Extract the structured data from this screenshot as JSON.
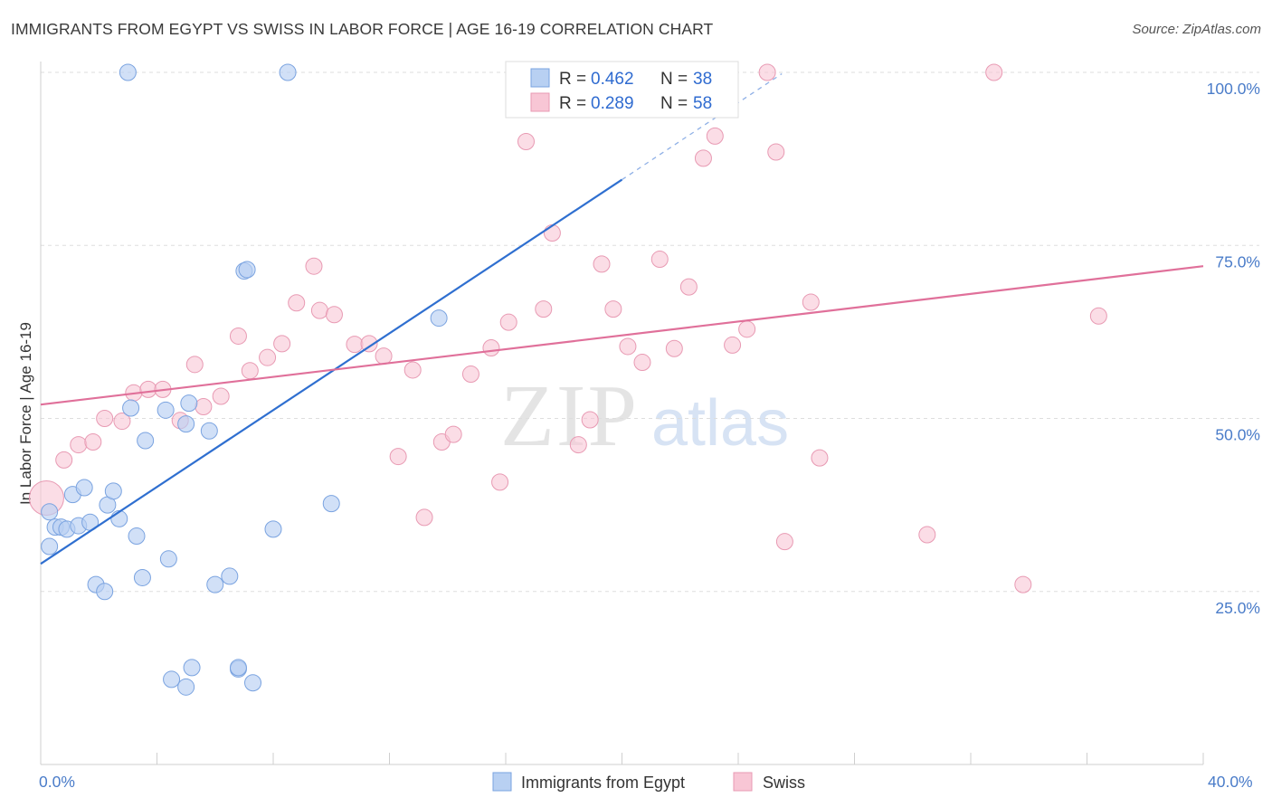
{
  "header": {
    "title": "IMMIGRANTS FROM EGYPT VS SWISS IN LABOR FORCE | AGE 16-19 CORRELATION CHART",
    "source": "Source: ZipAtlas.com"
  },
  "watermark": {
    "zip": "ZIP",
    "atlas": "atlas"
  },
  "colors": {
    "blue_fill": "#b8d0f2",
    "blue_stroke": "#7aa3e0",
    "blue_line": "#2f6fd0",
    "pink_fill": "#f8c6d5",
    "pink_stroke": "#e89ab3",
    "pink_line": "#e0709a",
    "grid": "#dddddd",
    "tick_text": "#4a7cc9"
  },
  "legend": {
    "rows": [
      {
        "r_label": "R = ",
        "r_value": "0.462",
        "n_label": "N = ",
        "n_value": "38"
      },
      {
        "r_label": "R = ",
        "r_value": "0.289",
        "n_label": "N = ",
        "n_value": "58"
      }
    ]
  },
  "chart_data": {
    "type": "scatter",
    "title": "IMMIGRANTS FROM EGYPT VS SWISS IN LABOR FORCE | AGE 16-19 CORRELATION CHART",
    "xlabel": "",
    "ylabel": "In Labor Force | Age 16-19",
    "xlim": [
      0,
      40
    ],
    "ylim": [
      0,
      100
    ],
    "x_tick_labels": [
      "0.0%",
      "40.0%"
    ],
    "y_tick_values": [
      25,
      50,
      75,
      100
    ],
    "y_tick_labels": [
      "25.0%",
      "50.0%",
      "75.0%",
      "100.0%"
    ],
    "grid": true,
    "series": [
      {
        "name": "Immigrants from Egypt",
        "color": "blue",
        "points": [
          [
            0.3,
            36.5
          ],
          [
            0.3,
            31.5
          ],
          [
            0.5,
            34.3
          ],
          [
            0.7,
            34.3
          ],
          [
            0.9,
            34.0
          ],
          [
            1.3,
            34.5
          ],
          [
            1.1,
            39.0
          ],
          [
            1.5,
            40.0
          ],
          [
            1.7,
            35.0
          ],
          [
            2.3,
            37.5
          ],
          [
            2.5,
            39.5
          ],
          [
            2.7,
            35.5
          ],
          [
            3.3,
            33.0
          ],
          [
            3.5,
            27.0
          ],
          [
            1.9,
            26.0
          ],
          [
            2.2,
            25.0
          ],
          [
            3.1,
            51.5
          ],
          [
            3.6,
            46.8
          ],
          [
            4.3,
            51.2
          ],
          [
            4.4,
            29.7
          ],
          [
            5.0,
            49.2
          ],
          [
            5.1,
            52.2
          ],
          [
            5.8,
            48.2
          ],
          [
            6.0,
            26.0
          ],
          [
            6.5,
            27.2
          ],
          [
            6.8,
            13.8
          ],
          [
            6.8,
            14.0
          ],
          [
            7.0,
            71.3
          ],
          [
            7.1,
            71.5
          ],
          [
            7.3,
            11.8
          ],
          [
            5.2,
            14.0
          ],
          [
            4.5,
            12.3
          ],
          [
            5.0,
            11.2
          ],
          [
            8.0,
            34.0
          ],
          [
            8.5,
            100.0
          ],
          [
            3.0,
            100.0
          ],
          [
            10.0,
            37.7
          ],
          [
            13.7,
            64.5
          ]
        ],
        "trend": {
          "x0": 0,
          "y0": 29.0,
          "x1": 20.0,
          "y1": 84.5,
          "dash_x1": 25.5,
          "dash_y1": 99.8
        }
      },
      {
        "name": "Swiss",
        "color": "pink",
        "points": [
          [
            0.2,
            38.5
          ],
          [
            0.8,
            44.0
          ],
          [
            1.3,
            46.2
          ],
          [
            1.8,
            46.6
          ],
          [
            2.2,
            50.0
          ],
          [
            2.8,
            49.6
          ],
          [
            3.2,
            53.7
          ],
          [
            3.7,
            54.2
          ],
          [
            4.2,
            54.2
          ],
          [
            4.8,
            49.7
          ],
          [
            5.3,
            57.8
          ],
          [
            5.6,
            51.7
          ],
          [
            6.2,
            53.2
          ],
          [
            6.8,
            61.9
          ],
          [
            7.2,
            56.9
          ],
          [
            7.8,
            58.8
          ],
          [
            8.3,
            60.8
          ],
          [
            8.8,
            66.7
          ],
          [
            9.4,
            72.0
          ],
          [
            9.6,
            65.6
          ],
          [
            10.1,
            65.0
          ],
          [
            10.8,
            60.7
          ],
          [
            11.3,
            60.8
          ],
          [
            11.8,
            59.0
          ],
          [
            12.3,
            44.5
          ],
          [
            12.8,
            57.0
          ],
          [
            13.2,
            35.7
          ],
          [
            13.8,
            46.6
          ],
          [
            14.2,
            47.7
          ],
          [
            14.8,
            56.4
          ],
          [
            15.5,
            60.2
          ],
          [
            15.8,
            40.8
          ],
          [
            16.1,
            63.9
          ],
          [
            16.7,
            90.0
          ],
          [
            17.3,
            65.8
          ],
          [
            17.6,
            76.8
          ],
          [
            18.5,
            46.2
          ],
          [
            18.9,
            49.8
          ],
          [
            19.3,
            72.3
          ],
          [
            19.7,
            65.8
          ],
          [
            20.2,
            60.4
          ],
          [
            20.7,
            58.1
          ],
          [
            21.3,
            73.0
          ],
          [
            21.8,
            60.1
          ],
          [
            22.3,
            69.0
          ],
          [
            22.8,
            87.6
          ],
          [
            23.2,
            90.8
          ],
          [
            23.8,
            60.6
          ],
          [
            24.3,
            62.9
          ],
          [
            25.0,
            100.0
          ],
          [
            25.3,
            88.5
          ],
          [
            25.6,
            32.2
          ],
          [
            26.5,
            66.8
          ],
          [
            26.8,
            44.3
          ],
          [
            30.5,
            33.2
          ],
          [
            32.8,
            100.0
          ],
          [
            33.8,
            26.0
          ],
          [
            36.4,
            64.8
          ]
        ],
        "trend": {
          "x0": 0,
          "y0": 52.0,
          "x1": 40.0,
          "y1": 72.0
        }
      }
    ]
  },
  "bottom_legend": {
    "items": [
      {
        "label": "Immigrants from Egypt"
      },
      {
        "label": "Swiss"
      }
    ]
  }
}
